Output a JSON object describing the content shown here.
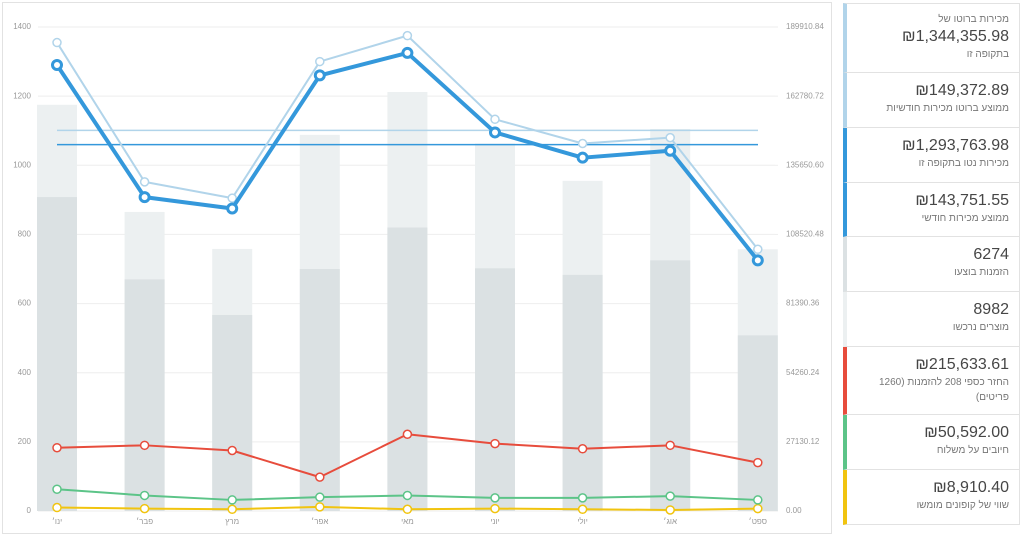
{
  "chart_data": {
    "type": "bar-line",
    "categories": [
      "ינו׳",
      "פבר׳",
      "מרץ",
      "אפר׳",
      "מאי",
      "יוני",
      "יולי",
      "אוג׳",
      "ספט׳"
    ],
    "ylim": [
      0,
      1400
    ],
    "yticks": [
      0,
      200,
      400,
      600,
      800,
      1000,
      1200,
      1400
    ],
    "y2lim": [
      0,
      189910.84
    ],
    "y2ticks": [
      {
        "value": 0,
        "label": "0.00"
      },
      27130.12,
      54260.24,
      81390.36,
      108520.48,
      {
        "value": 135650.6,
        "label": "135650.60"
      },
      162780.72,
      189910.84
    ],
    "grid": true,
    "series": [
      {
        "type": "bar",
        "color": "#ecf0f1",
        "values": [
          1175,
          865,
          758,
          1088,
          1212,
          1063,
          955,
          1105,
          757
        ]
      },
      {
        "type": "bar",
        "color": "#dbe1e3",
        "values": [
          908,
          670,
          567,
          700,
          820,
          702,
          683,
          725,
          508
        ]
      },
      {
        "type": "line",
        "axis": "y2",
        "color": "#f1c40f",
        "values": [
          1357,
          950,
          678,
          1628,
          678,
          950,
          678,
          407,
          950
        ]
      },
      {
        "type": "line",
        "axis": "y2",
        "color": "#5cc488",
        "values": [
          8546,
          6104,
          4341,
          5426,
          6104,
          5155,
          5155,
          5833,
          4341
        ]
      },
      {
        "type": "line",
        "axis": "y2",
        "color": "#e74c3c",
        "values": [
          24824,
          25774,
          23739,
          13294,
          30114,
          26452,
          24417,
          25774,
          18991
        ]
      },
      {
        "type": "line",
        "axis": "y2",
        "color": "#b1d4ea",
        "values": [
          183806,
          129139,
          122763,
          176345,
          186519,
          153691,
          144196,
          146502,
          102687
        ]
      },
      {
        "type": "line",
        "axis": "y2",
        "color": "#3498db",
        "values": [
          174989,
          123170,
          118694,
          170919,
          179736,
          148537,
          138634,
          141347,
          98346
        ]
      }
    ],
    "reference_lines": [
      {
        "value": 149372.89,
        "color": "#b1d4ea"
      },
      {
        "value": 143751.55,
        "color": "#3498db"
      }
    ]
  },
  "legend": {
    "items": [
      {
        "caption": "מכירות ברוטו של",
        "value": "₪1,344,355.98",
        "text": "בתקופה זו",
        "color": "#b1d4ea"
      },
      {
        "value": "₪149,372.89",
        "text": "ממוצע ברוטו מכירות חודשיות",
        "color": "#b1d4ea"
      },
      {
        "value": "₪1,293,763.98",
        "text": "מכירות נטו בתקופה זו",
        "color": "#3498db"
      },
      {
        "value": "₪143,751.55",
        "text": "ממוצע מכירות חודשי",
        "color": "#3498db"
      },
      {
        "value": "6274",
        "text": "הזמנות בוצעו",
        "color": "#dbe1e3"
      },
      {
        "value": "8982",
        "text": "מוצרים נרכשו",
        "color": "#ecf0f1"
      },
      {
        "value": "₪215,633.61",
        "text": "החזר כספי 208 להזמנות (1260 פריטים)",
        "color": "#e74c3c"
      },
      {
        "value": "₪50,592.00",
        "text": "חיובים על משלוח",
        "color": "#5cc488"
      },
      {
        "value": "₪8,910.40",
        "text": "שווי של קופונים מומשו",
        "color": "#f1c40f"
      }
    ]
  }
}
